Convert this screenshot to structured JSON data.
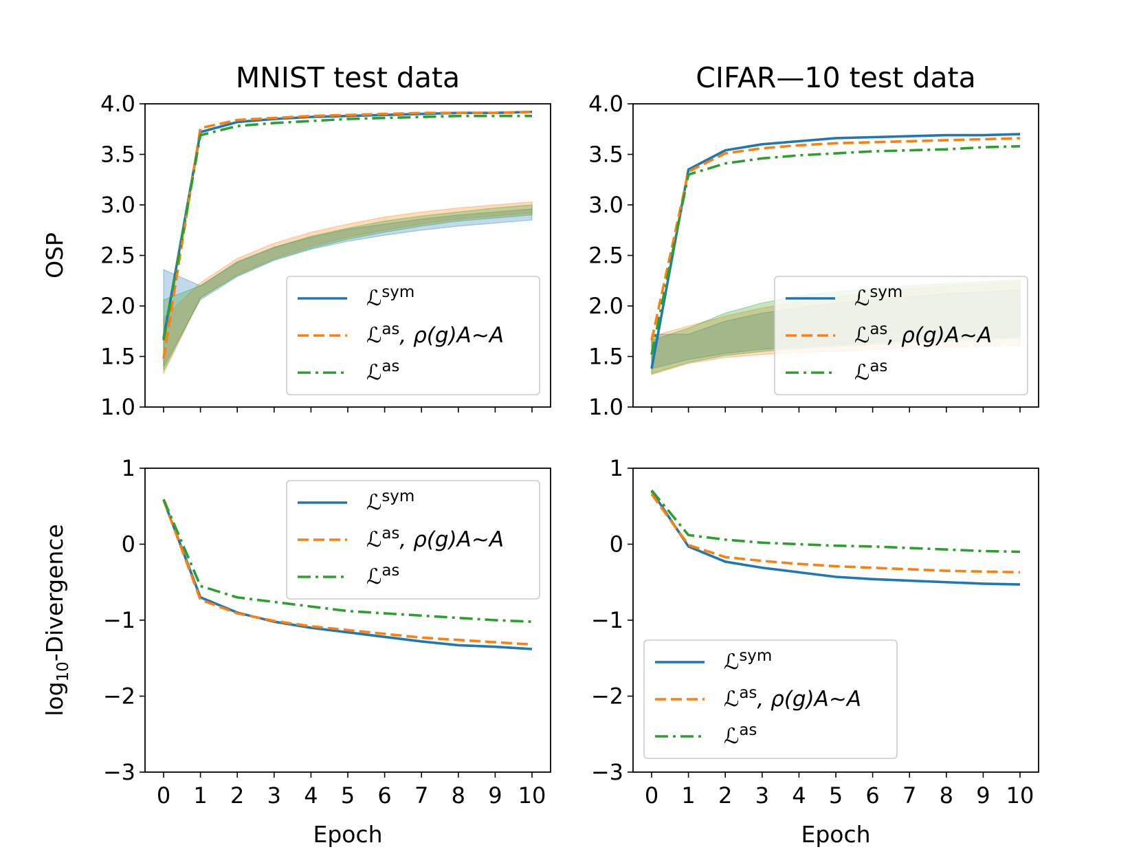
{
  "figure": {
    "xlabel": "Epoch",
    "colors": {
      "sym": "#1f77b4",
      "as_equiv": "#ff7f0e",
      "as": "#2ca02c"
    },
    "line_styles": {
      "sym": "solid",
      "as_equiv": "dashed",
      "as": "dashdot"
    }
  },
  "legend": {
    "entries": [
      {
        "key": "sym",
        "symbol": "ℒ",
        "sup": "sym",
        "rest": ""
      },
      {
        "key": "as_equiv",
        "symbol": "ℒ",
        "sup": "as",
        "rest": ", ρ(g)A∼A"
      },
      {
        "key": "as",
        "symbol": "ℒ",
        "sup": "as",
        "rest": ""
      }
    ]
  },
  "chart_data": [
    {
      "id": "mnist-osp",
      "type": "line",
      "title": "MNIST test data",
      "xlabel": "",
      "ylabel": "OSP",
      "ylim": [
        1.0,
        4.0
      ],
      "yticks": [
        "1.0",
        "1.5",
        "2.0",
        "2.5",
        "3.0",
        "3.5",
        "4.0"
      ],
      "xticks": [],
      "legend_position": "lower-right",
      "x": [
        0,
        1,
        2,
        3,
        4,
        5,
        6,
        7,
        8,
        9,
        10
      ],
      "series": [
        {
          "key": "sym",
          "name": "ℒsym",
          "values": [
            1.68,
            3.72,
            3.82,
            3.85,
            3.87,
            3.88,
            3.89,
            3.9,
            3.91,
            3.91,
            3.92
          ]
        },
        {
          "key": "as_equiv",
          "name": "ℒas, ρ(g)A∼A",
          "values": [
            1.48,
            3.76,
            3.84,
            3.86,
            3.88,
            3.89,
            3.9,
            3.91,
            3.91,
            3.91,
            3.92
          ]
        },
        {
          "key": "as",
          "name": "ℒas",
          "values": [
            1.66,
            3.69,
            3.78,
            3.81,
            3.83,
            3.85,
            3.86,
            3.87,
            3.88,
            3.88,
            3.88
          ]
        }
      ],
      "bands": [
        {
          "key": "sym",
          "lower": [
            1.4,
            2.06,
            2.29,
            2.45,
            2.56,
            2.64,
            2.7,
            2.75,
            2.79,
            2.82,
            2.85
          ],
          "upper": [
            2.36,
            2.2,
            2.44,
            2.58,
            2.68,
            2.76,
            2.81,
            2.86,
            2.9,
            2.93,
            2.96
          ]
        },
        {
          "key": "as_equiv",
          "lower": [
            1.33,
            2.08,
            2.31,
            2.47,
            2.59,
            2.68,
            2.75,
            2.81,
            2.86,
            2.89,
            2.92
          ],
          "upper": [
            1.88,
            2.23,
            2.47,
            2.62,
            2.73,
            2.81,
            2.88,
            2.93,
            2.97,
            3.0,
            3.03
          ]
        },
        {
          "key": "as",
          "lower": [
            1.36,
            2.08,
            2.3,
            2.46,
            2.57,
            2.66,
            2.73,
            2.79,
            2.84,
            2.87,
            2.9
          ],
          "upper": [
            2.06,
            2.2,
            2.43,
            2.58,
            2.69,
            2.77,
            2.84,
            2.89,
            2.93,
            2.97,
            3.0
          ]
        }
      ]
    },
    {
      "id": "cifar-osp",
      "type": "line",
      "title": "CIFAR—10 test data",
      "xlabel": "",
      "ylabel": "",
      "ylim": [
        1.0,
        4.0
      ],
      "yticks": [
        "1.0",
        "1.5",
        "2.0",
        "2.5",
        "3.0",
        "3.5",
        "4.0"
      ],
      "xticks": [],
      "legend_position": "lower-right",
      "x": [
        0,
        1,
        2,
        3,
        4,
        5,
        6,
        7,
        8,
        9,
        10
      ],
      "series": [
        {
          "key": "sym",
          "name": "ℒsym",
          "values": [
            1.38,
            3.35,
            3.54,
            3.6,
            3.63,
            3.66,
            3.67,
            3.68,
            3.69,
            3.69,
            3.7
          ]
        },
        {
          "key": "as_equiv",
          "name": "ℒas, ρ(g)A∼A",
          "values": [
            1.66,
            3.33,
            3.51,
            3.56,
            3.59,
            3.61,
            3.62,
            3.63,
            3.64,
            3.65,
            3.66
          ]
        },
        {
          "key": "as",
          "name": "ℒas",
          "values": [
            1.52,
            3.3,
            3.41,
            3.46,
            3.49,
            3.51,
            3.53,
            3.54,
            3.55,
            3.57,
            3.58
          ]
        }
      ],
      "bands": [
        {
          "key": "sym",
          "lower": [
            1.38,
            1.47,
            1.53,
            1.57,
            1.6,
            1.62,
            1.64,
            1.66,
            1.67,
            1.69,
            1.7
          ],
          "upper": [
            1.72,
            1.72,
            1.85,
            1.93,
            1.98,
            2.03,
            2.06,
            2.09,
            2.12,
            2.14,
            2.16
          ]
        },
        {
          "key": "as_equiv",
          "lower": [
            1.32,
            1.43,
            1.49,
            1.52,
            1.54,
            1.55,
            1.57,
            1.58,
            1.59,
            1.6,
            1.61
          ],
          "upper": [
            1.7,
            1.8,
            1.9,
            1.98,
            2.04,
            2.09,
            2.13,
            2.17,
            2.2,
            2.22,
            2.24
          ]
        },
        {
          "key": "as",
          "lower": [
            1.33,
            1.44,
            1.51,
            1.55,
            1.58,
            1.6,
            1.62,
            1.64,
            1.65,
            1.67,
            1.68
          ],
          "upper": [
            1.66,
            1.78,
            1.93,
            2.03,
            2.1,
            2.14,
            2.17,
            2.2,
            2.22,
            2.24,
            2.26
          ]
        }
      ]
    },
    {
      "id": "mnist-div",
      "type": "line",
      "title": "",
      "xlabel": "Epoch",
      "ylabel": "log10-Divergence",
      "ylim": [
        -3,
        1
      ],
      "yticks": [
        "−3",
        "−2",
        "−1",
        "0",
        "1"
      ],
      "xticks": [
        "0",
        "1",
        "2",
        "3",
        "4",
        "5",
        "6",
        "7",
        "8",
        "9",
        "10"
      ],
      "legend_position": "upper-right",
      "x": [
        0,
        1,
        2,
        3,
        4,
        5,
        6,
        7,
        8,
        9,
        10
      ],
      "series": [
        {
          "key": "sym",
          "name": "ℒsym",
          "values": [
            0.58,
            -0.7,
            -0.9,
            -1.02,
            -1.1,
            -1.16,
            -1.22,
            -1.28,
            -1.33,
            -1.35,
            -1.38
          ]
        },
        {
          "key": "as_equiv",
          "name": "ℒas, ρ(g)A∼A",
          "values": [
            0.58,
            -0.73,
            -0.91,
            -1.01,
            -1.08,
            -1.13,
            -1.18,
            -1.23,
            -1.26,
            -1.29,
            -1.32
          ]
        },
        {
          "key": "as",
          "name": "ℒas",
          "values": [
            0.59,
            -0.55,
            -0.7,
            -0.76,
            -0.82,
            -0.88,
            -0.91,
            -0.94,
            -0.97,
            -1.0,
            -1.02
          ]
        }
      ]
    },
    {
      "id": "cifar-div",
      "type": "line",
      "title": "",
      "xlabel": "Epoch",
      "ylabel": "",
      "ylim": [
        -3,
        1
      ],
      "yticks": [
        "−3",
        "−2",
        "−1",
        "0",
        "1"
      ],
      "xticks": [
        "0",
        "1",
        "2",
        "3",
        "4",
        "5",
        "6",
        "7",
        "8",
        "9",
        "10"
      ],
      "legend_position": "lower-left",
      "x": [
        0,
        1,
        2,
        3,
        4,
        5,
        6,
        7,
        8,
        9,
        10
      ],
      "series": [
        {
          "key": "sym",
          "name": "ℒsym",
          "values": [
            0.7,
            -0.03,
            -0.23,
            -0.31,
            -0.37,
            -0.43,
            -0.46,
            -0.48,
            -0.5,
            -0.52,
            -0.53
          ]
        },
        {
          "key": "as_equiv",
          "name": "ℒas, ρ(g)A∼A",
          "values": [
            0.66,
            -0.01,
            -0.17,
            -0.22,
            -0.26,
            -0.29,
            -0.31,
            -0.33,
            -0.35,
            -0.36,
            -0.37
          ]
        },
        {
          "key": "as",
          "name": "ℒas",
          "values": [
            0.71,
            0.12,
            0.06,
            0.02,
            0.0,
            -0.02,
            -0.03,
            -0.05,
            -0.07,
            -0.09,
            -0.1
          ]
        }
      ]
    }
  ]
}
